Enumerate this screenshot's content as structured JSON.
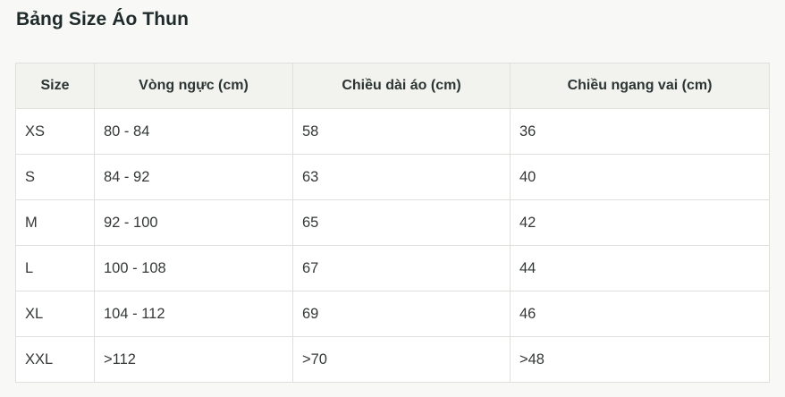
{
  "title": "Bảng Size Áo Thun",
  "table": {
    "headers": [
      "Size",
      "Vòng ngực (cm)",
      "Chiều dài áo (cm)",
      "Chiều ngang vai (cm)"
    ],
    "rows": [
      [
        "XS",
        "80 - 84",
        "58",
        "36"
      ],
      [
        "S",
        "84 - 92",
        "63",
        "40"
      ],
      [
        "M",
        "92 - 100",
        "65",
        "42"
      ],
      [
        "L",
        "100 - 108",
        "67",
        "44"
      ],
      [
        "XL",
        "104 - 112",
        "69",
        "46"
      ],
      [
        "XXL",
        ">112",
        ">70",
        ">48"
      ]
    ]
  }
}
